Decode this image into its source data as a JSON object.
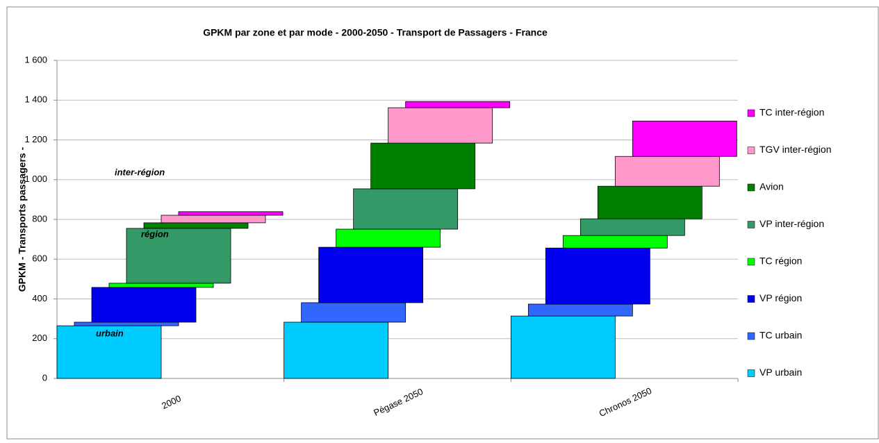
{
  "chart_data": {
    "type": "staircase_stacked_bar",
    "title": "GPKM par zone et par mode - 2000-2050 - Transport de Passagers - France",
    "y_label": "GPKM - Transports passagers -",
    "categories": [
      "2000",
      "Pégase 2050",
      "Chronos 2050"
    ],
    "series": [
      {
        "name": "VP urbain",
        "color": "#00ccff",
        "values": [
          265,
          283,
          314
        ]
      },
      {
        "name": "TC urbain",
        "color": "#3366ff",
        "values": [
          18,
          98,
          60
        ]
      },
      {
        "name": "VP région",
        "color": "#0000ee",
        "values": [
          175,
          279,
          282
        ]
      },
      {
        "name": "TC région",
        "color": "#00ff00",
        "values": [
          21,
          91,
          63
        ]
      },
      {
        "name": "VP inter-région",
        "color": "#339966",
        "values": [
          276,
          203,
          84
        ]
      },
      {
        "name": "Avion",
        "color": "#008000",
        "values": [
          28,
          230,
          164
        ]
      },
      {
        "name": "TGV inter-région",
        "color": "#ff99cc",
        "values": [
          38,
          178,
          150
        ]
      },
      {
        "name": "TC inter-région",
        "color": "#ff00ff",
        "values": [
          18,
          31,
          178
        ]
      }
    ],
    "annotations": [
      "inter-région",
      "région",
      "urbain"
    ],
    "ylim": [
      0,
      1600
    ],
    "yticks": [
      0,
      200,
      400,
      600,
      800,
      {
        "value": 1000,
        "label": "1 000"
      },
      {
        "value": 1200,
        "label": "1 200"
      },
      {
        "value": 1400,
        "label": "1 400"
      },
      {
        "value": 1600,
        "label": "1 600"
      }
    ],
    "grid": true,
    "legend": "right"
  }
}
